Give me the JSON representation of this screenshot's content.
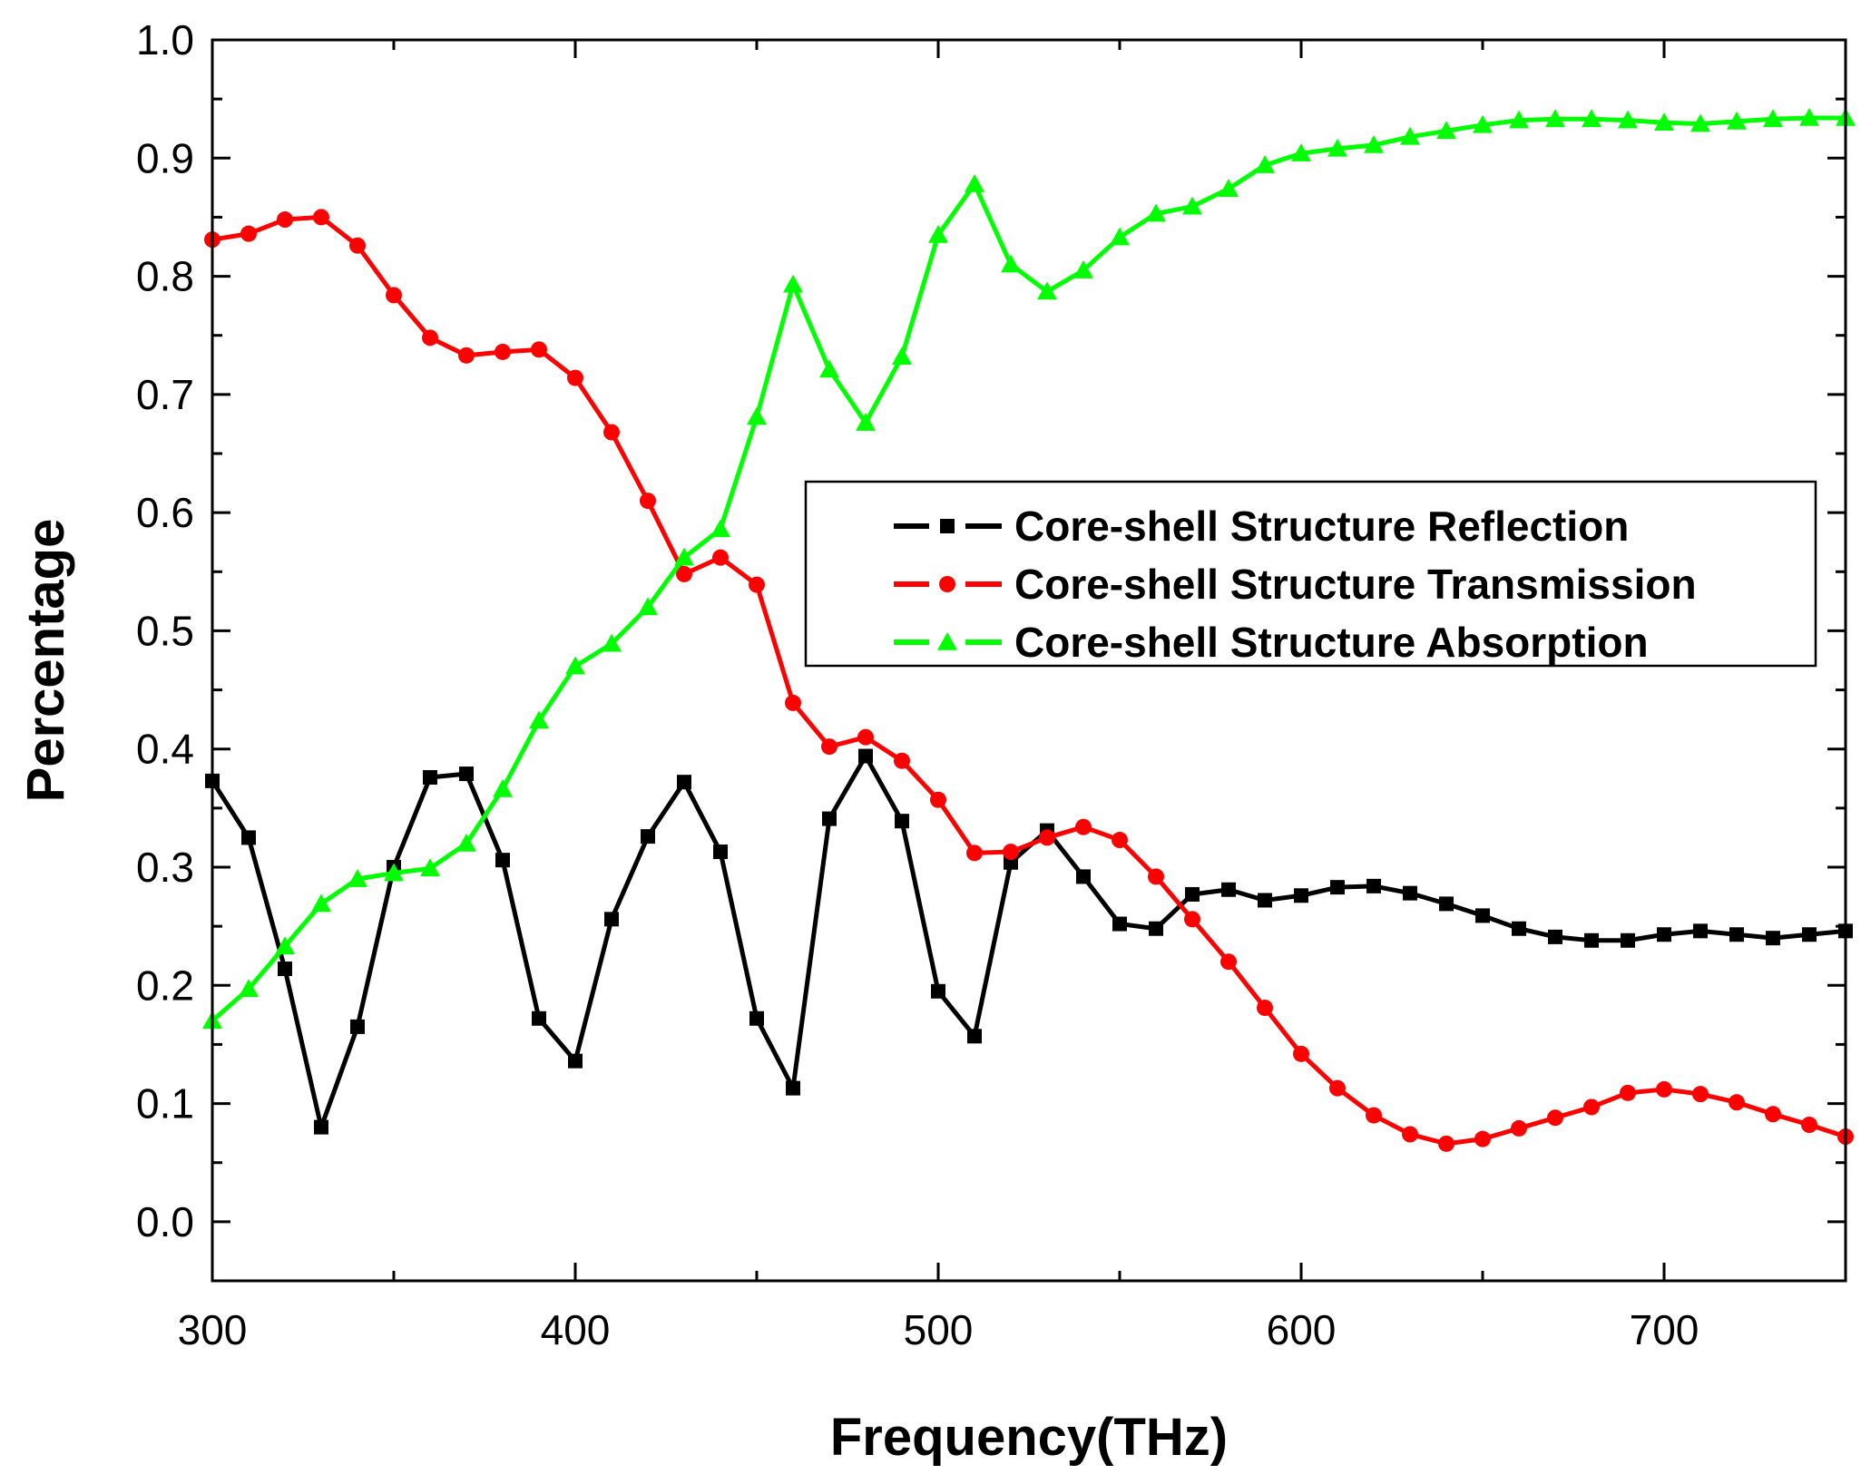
{
  "chart_data": {
    "type": "line",
    "title": "",
    "xlabel": "Frequency(THz)",
    "ylabel": "Percentage",
    "xlim": [
      300,
      750
    ],
    "ylim": [
      -0.05,
      1.0
    ],
    "xticks": [
      300,
      400,
      500,
      600,
      700
    ],
    "xtick_labels": [
      "300",
      "400",
      "500",
      "600",
      "700"
    ],
    "yticks": [
      0.0,
      0.1,
      0.2,
      0.3,
      0.4,
      0.5,
      0.6,
      0.7,
      0.8,
      0.9,
      1.0
    ],
    "ytick_labels": [
      "0.0",
      "0.1",
      "0.2",
      "0.3",
      "0.4",
      "0.5",
      "0.6",
      "0.7",
      "0.8",
      "0.9",
      "1.0"
    ],
    "grid": false,
    "legend_position": "center-right",
    "x": [
      300,
      310,
      320,
      330,
      340,
      350,
      360,
      370,
      380,
      390,
      400,
      410,
      420,
      430,
      440,
      450,
      460,
      470,
      480,
      490,
      500,
      510,
      520,
      530,
      540,
      550,
      560,
      570,
      580,
      590,
      600,
      610,
      620,
      630,
      640,
      650,
      660,
      670,
      680,
      690,
      700,
      710,
      720,
      730,
      740,
      750
    ],
    "series": [
      {
        "name": "Core-shell Structure Reflection",
        "color": "#000000",
        "marker": "square",
        "values": [
          0.373,
          0.325,
          0.214,
          0.08,
          0.165,
          0.3,
          0.376,
          0.379,
          0.306,
          0.172,
          0.136,
          0.256,
          0.326,
          0.372,
          0.313,
          0.172,
          0.113,
          0.341,
          0.394,
          0.339,
          0.195,
          0.157,
          0.304,
          0.331,
          0.292,
          0.252,
          0.248,
          0.277,
          0.281,
          0.272,
          0.276,
          0.283,
          0.284,
          0.278,
          0.269,
          0.259,
          0.248,
          0.241,
          0.238,
          0.238,
          0.243,
          0.246,
          0.243,
          0.24,
          0.243,
          0.246
        ]
      },
      {
        "name": "Core-shell Structure Transmission",
        "color": "#ff0000",
        "marker": "circle",
        "values": [
          0.831,
          0.836,
          0.848,
          0.85,
          0.826,
          0.784,
          0.748,
          0.733,
          0.736,
          0.738,
          0.714,
          0.668,
          0.61,
          0.548,
          0.562,
          0.539,
          0.439,
          0.402,
          0.41,
          0.39,
          0.357,
          0.312,
          0.313,
          0.325,
          0.334,
          0.323,
          0.292,
          0.256,
          0.22,
          0.181,
          0.142,
          0.113,
          0.09,
          0.074,
          0.066,
          0.07,
          0.079,
          0.088,
          0.097,
          0.109,
          0.112,
          0.108,
          0.101,
          0.091,
          0.082,
          0.072
        ]
      },
      {
        "name": "Core-shell Structure Absorption",
        "color": "#00ff00",
        "marker": "triangle",
        "values": [
          0.17,
          0.197,
          0.233,
          0.269,
          0.29,
          0.295,
          0.299,
          0.32,
          0.366,
          0.424,
          0.47,
          0.489,
          0.52,
          0.562,
          0.586,
          0.681,
          0.793,
          0.721,
          0.676,
          0.732,
          0.835,
          0.878,
          0.81,
          0.787,
          0.805,
          0.833,
          0.853,
          0.859,
          0.874,
          0.894,
          0.904,
          0.908,
          0.911,
          0.918,
          0.923,
          0.928,
          0.932,
          0.933,
          0.933,
          0.932,
          0.93,
          0.929,
          0.931,
          0.933,
          0.934,
          0.934
        ]
      }
    ]
  }
}
